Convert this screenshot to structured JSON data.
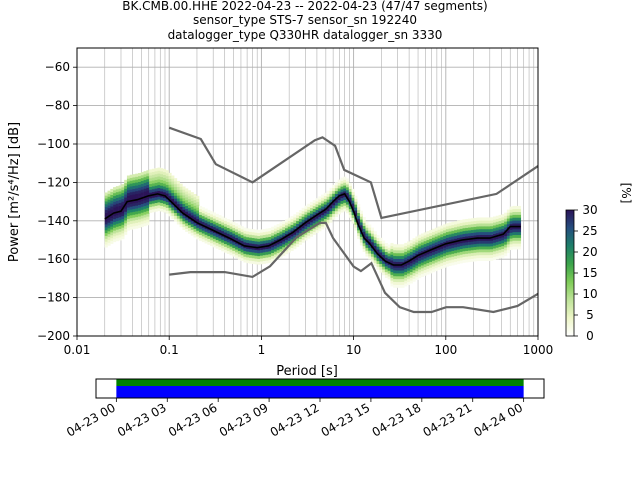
{
  "chart_data": [
    {
      "type": "heatmap",
      "title_lines": [
        "BK.CMB.00.HHE   2022-04-23 -- 2022-04-23  (47/47 segments)",
        "sensor_type STS-7 sensor_sn 192240",
        "datalogger_type Q330HR datalogger_sn 3330"
      ],
      "xlabel": "Period [s]",
      "ylabel": "Power [m²/s⁴/Hz] [dB]",
      "x_scale": "log",
      "xlim": [
        0.01,
        1000
      ],
      "ylim": [
        -200,
        -50
      ],
      "x_ticks": [
        0.01,
        0.1,
        1,
        10,
        100,
        1000
      ],
      "x_tick_labels": [
        "0.01",
        "0.1",
        "1",
        "10",
        "100",
        "1000"
      ],
      "y_ticks": [
        -200,
        -180,
        -160,
        -140,
        -120,
        -100,
        -80,
        -60
      ],
      "y_tick_labels": [
        "−200",
        "−180",
        "−160",
        "−140",
        "−120",
        "−100",
        "−80",
        "−60"
      ],
      "grid": true,
      "colorbar": {
        "label": "[%]",
        "range": [
          0,
          30
        ],
        "ticks": [
          0,
          5,
          10,
          15,
          20,
          25,
          30
        ],
        "colors": [
          "#ffffff",
          "#eef6c8",
          "#bfe39a",
          "#7fcc58",
          "#3ca44b",
          "#1e7f69",
          "#254e7e",
          "#2b1458"
        ]
      },
      "series": [
        {
          "name": "",
          "role": "mode",
          "color": "#000000",
          "x": [
            0.02,
            0.025,
            0.03,
            0.035,
            0.045,
            0.06,
            0.075,
            0.09,
            0.11,
            0.14,
            0.2,
            0.3,
            0.45,
            0.65,
            0.9,
            1.2,
            1.6,
            2.2,
            3,
            4,
            5,
            6,
            7,
            8,
            9,
            10,
            11,
            13,
            15,
            18,
            22,
            27,
            33,
            40,
            50,
            70,
            100,
            150,
            220,
            300,
            420,
            500,
            650
          ],
          "y": [
            -139,
            -136,
            -135,
            -130,
            -129,
            -127,
            -126,
            -127,
            -131,
            -136,
            -141,
            -145,
            -149,
            -153,
            -154,
            -153,
            -150,
            -146,
            -141,
            -137,
            -134,
            -130,
            -127,
            -126,
            -130,
            -135,
            -141,
            -149,
            -152,
            -157,
            -161,
            -163,
            -163,
            -161,
            -158,
            -155,
            -152,
            -150,
            -149,
            -149,
            -147,
            -143,
            -143
          ]
        },
        {
          "name": "",
          "role": "high-noise-model",
          "color": "#666666",
          "x": [
            0.1,
            0.22,
            0.32,
            0.8,
            3.8,
            4.6,
            6.3,
            7.9,
            15.4,
            20,
            354.8,
            1000
          ],
          "y": [
            -91.5,
            -97.4,
            -110.5,
            -120,
            -98,
            -96.5,
            -101,
            -113.5,
            -120,
            -138.5,
            -126,
            -111.5
          ]
        },
        {
          "name": "",
          "role": "low-noise-model",
          "color": "#666666",
          "x": [
            0.1,
            0.17,
            0.4,
            0.8,
            1.24,
            2.4,
            4.3,
            5,
            6,
            10,
            12,
            15.6,
            21.9,
            31.6,
            45,
            70,
            101,
            154,
            328,
            600,
            1000
          ],
          "y": [
            -168,
            -166.7,
            -166.7,
            -169.2,
            -163.7,
            -148.6,
            -141.1,
            -141.1,
            -149,
            -163.8,
            -166.2,
            -162.1,
            -177.5,
            -185,
            -187.5,
            -187.5,
            -185,
            -185,
            -187.5,
            -184.4,
            -178
          ]
        }
      ]
    },
    {
      "type": "timeline",
      "x_tick_labels": [
        "04-23 00",
        "04-23 03",
        "04-23 06",
        "04-23 09",
        "04-23 12",
        "04-23 15",
        "04-23 18",
        "04-23 21",
        "04-24 00"
      ],
      "x_hours": [
        0,
        3,
        6,
        9,
        12,
        15,
        18,
        21,
        24
      ],
      "xlim_hours": [
        -1.2,
        25.2
      ],
      "coverage_hours": [
        0,
        24
      ],
      "colors": {
        "data": "#008000",
        "psd": "#0000ff"
      }
    }
  ]
}
